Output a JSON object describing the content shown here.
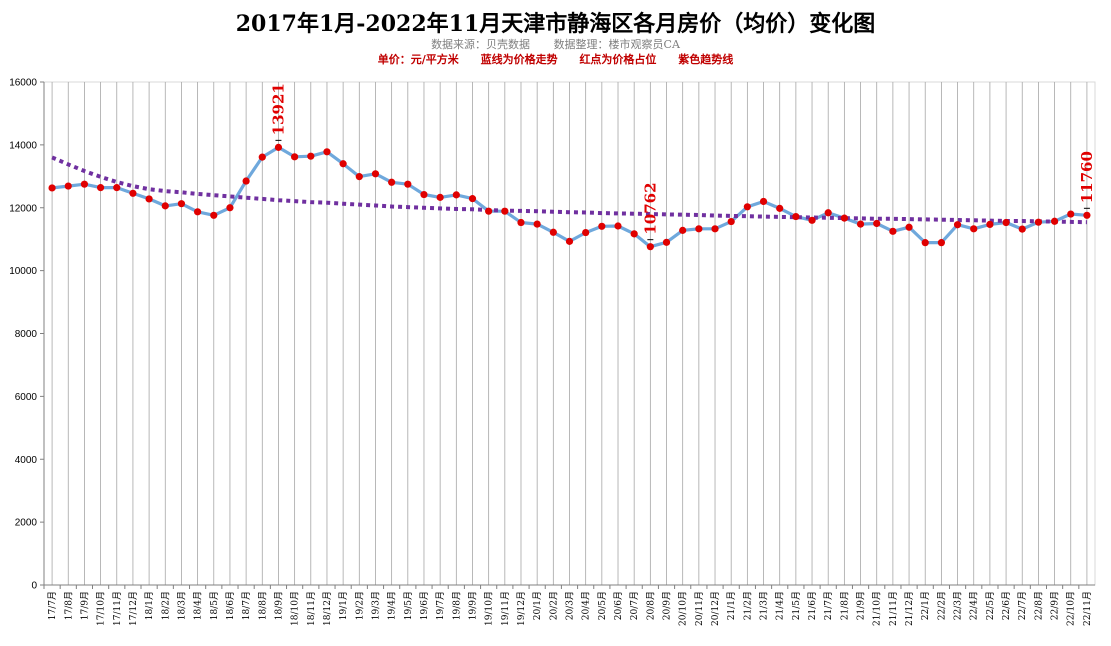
{
  "title": "2017年1月-2022年11月天津市静海区各月房价（均价）变化图",
  "subtitle": {
    "source": "数据来源：贝壳数据",
    "compiler": "数据整理：楼市观察员CA"
  },
  "note": {
    "unit": "单价：元/平方米",
    "blue": "蓝线为价格走势",
    "red": "红点为价格占位",
    "purple": "紫色趋势线"
  },
  "colors": {
    "line": "#6fa8dc",
    "points": "#e00000",
    "trend": "#7030a0",
    "grid": "#a6a6a6",
    "label": "#e00000"
  },
  "chart_data": {
    "type": "line",
    "title": "2017年1月-2022年11月天津市静海区各月房价（均价）变化图",
    "ylabel": "单价：元/平方米",
    "ylim": [
      0,
      16000
    ],
    "yticks": [
      0,
      2000,
      4000,
      6000,
      8000,
      10000,
      12000,
      14000,
      16000
    ],
    "grid": "vertical",
    "categories": [
      "17/7月",
      "17/8月",
      "17/9月",
      "17/10月",
      "17/11月",
      "17/12月",
      "18/1月",
      "18/2月",
      "18/3月",
      "18/4月",
      "18/5月",
      "18/6月",
      "18/7月",
      "18/8月",
      "18/9月",
      "18/10月",
      "18/11月",
      "18/12月",
      "19/1月",
      "19/2月",
      "19/3月",
      "19/4月",
      "19/5月",
      "19/6月",
      "19/7月",
      "19/8月",
      "19/9月",
      "19/10月",
      "19/11月",
      "19/12月",
      "20/1月",
      "20/2月",
      "20/3月",
      "20/4月",
      "20/5月",
      "20/6月",
      "20/7月",
      "20/8月",
      "20/9月",
      "20/10月",
      "20/11月",
      "20/12月",
      "21/1月",
      "21/2月",
      "21/3月",
      "21/4月",
      "21/5月",
      "21/6月",
      "21/7月",
      "21/8月",
      "21/9月",
      "21/10月",
      "21/11月",
      "21/12月",
      "22/1月",
      "22/2月",
      "22/3月",
      "22/4月",
      "22/5月",
      "22/6月",
      "22/7月",
      "22/8月",
      "22/9月",
      "22/10月",
      "22/11月"
    ],
    "series": [
      {
        "values": [
          12630,
          12690,
          12750,
          12640,
          12640,
          12460,
          12280,
          12060,
          12130,
          11870,
          11760,
          12000,
          12850,
          13610,
          13921,
          13620,
          13640,
          13780,
          13400,
          12990,
          13080,
          12810,
          12750,
          12420,
          12330,
          12410,
          12290,
          11890,
          11890,
          11530,
          11480,
          11220,
          10930,
          11210,
          11410,
          11420,
          11170,
          10762,
          10900,
          11280,
          11330,
          11330,
          11560,
          12030,
          12200,
          11980,
          11720,
          11600,
          11840,
          11670,
          11480,
          11500,
          11250,
          11380,
          10890,
          10890,
          11460,
          11330,
          11470,
          11530,
          11320,
          11540,
          11570,
          11800,
          11760
        ]
      }
    ],
    "trend_values": [
      13600,
      13380,
      13170,
      12980,
      12820,
      12690,
      12590,
      12530,
      12490,
      12440,
      12400,
      12360,
      12320,
      12280,
      12240,
      12210,
      12180,
      12160,
      12130,
      12100,
      12070,
      12040,
      12020,
      12000,
      11980,
      11960,
      11950,
      11930,
      11910,
      11900,
      11890,
      11870,
      11860,
      11850,
      11830,
      11820,
      11810,
      11800,
      11790,
      11780,
      11770,
      11750,
      11740,
      11730,
      11720,
      11710,
      11700,
      11690,
      11680,
      11670,
      11660,
      11650,
      11650,
      11640,
      11630,
      11620,
      11610,
      11600,
      11590,
      11580,
      11580,
      11570,
      11560,
      11550,
      11540
    ],
    "data_labels": [
      {
        "index": 14,
        "text": "13921"
      },
      {
        "index": 37,
        "text": "10762"
      },
      {
        "index": 64,
        "text": "11760"
      }
    ]
  }
}
